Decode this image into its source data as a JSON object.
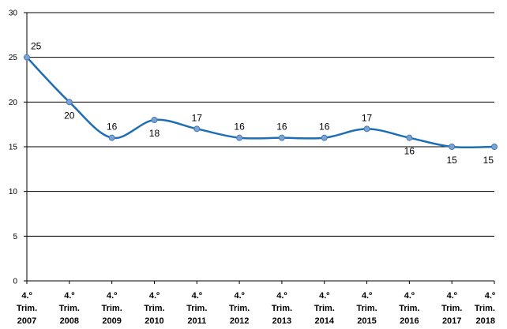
{
  "chart_data": {
    "type": "line",
    "title": "",
    "xlabel": "",
    "ylabel": "",
    "ylim": [
      0,
      30
    ],
    "yticks": [
      0,
      5,
      10,
      15,
      20,
      25,
      30
    ],
    "grid": "horizontal",
    "categories": [
      [
        "4.º",
        "Trim.",
        "2007"
      ],
      [
        "4.º",
        "Trim.",
        "2008"
      ],
      [
        "4.º",
        "Trim.",
        "2009"
      ],
      [
        "4.º",
        "Trim.",
        "2010"
      ],
      [
        "4.º",
        "Trim.",
        "2011"
      ],
      [
        "4.º",
        "Trim.",
        "2012"
      ],
      [
        "4.º",
        "Trim.",
        "2013"
      ],
      [
        "4.º",
        "Trim.",
        "2014"
      ],
      [
        "4.º",
        "Trim.",
        "2015"
      ],
      [
        "4.º",
        "Trim.",
        "2016"
      ],
      [
        "4.º",
        "Trim.",
        "2017"
      ],
      [
        "4.º",
        "Trim.",
        "2018"
      ]
    ],
    "series": [
      {
        "values": [
          25,
          20,
          16,
          18,
          17,
          16,
          16,
          16,
          17,
          16,
          15,
          15
        ],
        "data_labels": [
          "25",
          "20",
          "16",
          "18",
          "17",
          "16",
          "16",
          "16",
          "17",
          "16",
          "15",
          "15"
        ],
        "label_position": [
          "right",
          "below",
          "above",
          "below",
          "above",
          "above",
          "above",
          "above",
          "above",
          "below",
          "below",
          "below"
        ],
        "color": "#1f6eb5",
        "marker_color": "#7aa3d6"
      }
    ]
  }
}
